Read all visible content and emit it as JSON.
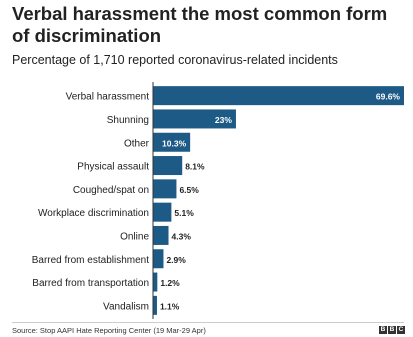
{
  "header": {
    "title": "Verbal harassment the most common form of discrimination",
    "subtitle": "Percentage of 1,710 reported coronavirus-related incidents"
  },
  "footer": {
    "source": "Source: Stop AAPI Hate Reporting Center (19 Mar-29 Apr)",
    "logo_letters": [
      "B",
      "B",
      "C"
    ]
  },
  "colors": {
    "bar": "#1d5a85",
    "axis": "#333333",
    "inside_label": "#ffffff",
    "outside_label": "#222222"
  },
  "chart_data": {
    "type": "bar",
    "orientation": "horizontal",
    "categories": [
      "Verbal harassment",
      "Shunning",
      "Other",
      "Physical assault",
      "Coughed/spat on",
      "Workplace discrimination",
      "Online",
      "Barred from establishment",
      "Barred from transportation",
      "Vandalism"
    ],
    "values": [
      69.6,
      23,
      10.3,
      8.1,
      6.5,
      5.1,
      4.3,
      2.9,
      1.2,
      1.1
    ],
    "value_labels": [
      "69.6%",
      "23%",
      "10.3%",
      "8.1%",
      "6.5%",
      "5.1%",
      "4.3%",
      "2.9%",
      "1.2%",
      "1.1%"
    ],
    "xlim": [
      0,
      69.6
    ],
    "grid": false,
    "legend": "none"
  }
}
